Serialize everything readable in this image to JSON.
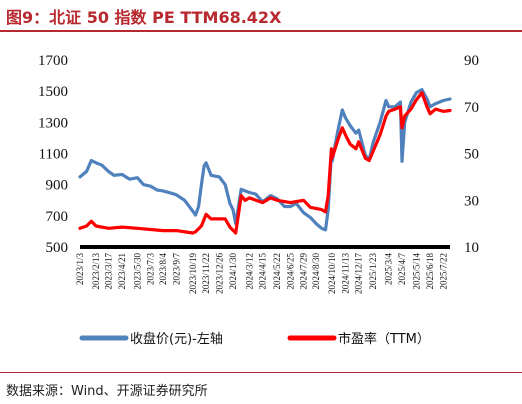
{
  "title": "图9：北证 50 指数 PE TTM68.42X",
  "source": "数据来源：Wind、开源证券研究所",
  "colors": {
    "accent": "#b8292f",
    "price": "#4f81bd",
    "pe": "#ff0000"
  },
  "chart_data": {
    "type": "line",
    "title": "图9：北证 50 指数 PE TTM68.42X",
    "y_left": {
      "min": 500,
      "max": 1700,
      "ticks": [
        500,
        700,
        900,
        1100,
        1300,
        1500,
        1700
      ]
    },
    "y_right": {
      "min": 10,
      "max": 90,
      "ticks": [
        10,
        30,
        50,
        70,
        90
      ]
    },
    "x_ticks": [
      "2023/1/3",
      "2023/2/13",
      "2023/3/17",
      "2023/4/21",
      "2023/5/30",
      "2023/7/3",
      "2023/8/4",
      "2023/9/7",
      "2023/10/19",
      "2023/11/22",
      "2023/12/26",
      "2024/1/30",
      "2024/3/12",
      "2024/4/15",
      "2024/5/22",
      "2024/6/25",
      "2024/7/29",
      "2024/8/30",
      "2024/10/10",
      "2024/11/13",
      "2024/12/17",
      "2025/1/23",
      "2025/3/4",
      "2025/4/7",
      "2025/5/14",
      "2025/6/18",
      "2025/7/22"
    ],
    "x_range": [
      "2023/1/3",
      "2025/8/8"
    ],
    "legend_position": "bottom",
    "grid": false,
    "series": [
      {
        "name": "收盘价(元)-左轴",
        "axis": "left",
        "color": "#4f81bd",
        "points": [
          [
            "2023/1/3",
            950
          ],
          [
            "2023/1/20",
            985
          ],
          [
            "2023/2/1",
            1055
          ],
          [
            "2023/2/13",
            1040
          ],
          [
            "2023/2/28",
            1025
          ],
          [
            "2023/3/17",
            985
          ],
          [
            "2023/3/31",
            960
          ],
          [
            "2023/4/21",
            965
          ],
          [
            "2023/5/10",
            935
          ],
          [
            "2023/5/30",
            945
          ],
          [
            "2023/6/15",
            900
          ],
          [
            "2023/7/3",
            890
          ],
          [
            "2023/7/20",
            865
          ],
          [
            "2023/8/4",
            860
          ],
          [
            "2023/8/25",
            845
          ],
          [
            "2023/9/7",
            835
          ],
          [
            "2023/9/28",
            800
          ],
          [
            "2023/10/19",
            730
          ],
          [
            "2023/10/26",
            705
          ],
          [
            "2023/11/3",
            760
          ],
          [
            "2023/11/10",
            900
          ],
          [
            "2023/11/17",
            1020
          ],
          [
            "2023/11/22",
            1040
          ],
          [
            "2023/12/5",
            960
          ],
          [
            "2023/12/26",
            950
          ],
          [
            "2024/1/10",
            900
          ],
          [
            "2024/1/22",
            780
          ],
          [
            "2024/1/30",
            740
          ],
          [
            "2024/2/6",
            650
          ],
          [
            "2024/2/20",
            870
          ],
          [
            "2024/3/1",
            860
          ],
          [
            "2024/3/12",
            850
          ],
          [
            "2024/3/28",
            840
          ],
          [
            "2024/4/15",
            790
          ],
          [
            "2024/5/5",
            830
          ],
          [
            "2024/5/22",
            810
          ],
          [
            "2024/6/10",
            760
          ],
          [
            "2024/6/25",
            760
          ],
          [
            "2024/7/10",
            780
          ],
          [
            "2024/7/29",
            720
          ],
          [
            "2024/8/15",
            690
          ],
          [
            "2024/8/30",
            650
          ],
          [
            "2024/9/13",
            620
          ],
          [
            "2024/9/23",
            610
          ],
          [
            "2024/9/30",
            740
          ],
          [
            "2024/10/8",
            1100
          ],
          [
            "2024/10/10",
            1050
          ],
          [
            "2024/10/25",
            1250
          ],
          [
            "2024/11/5",
            1380
          ],
          [
            "2024/11/13",
            1330
          ],
          [
            "2024/11/25",
            1280
          ],
          [
            "2024/12/10",
            1230
          ],
          [
            "2024/12/17",
            1250
          ],
          [
            "2025/1/3",
            1090
          ],
          [
            "2025/1/13",
            1060
          ],
          [
            "2025/1/23",
            1170
          ],
          [
            "2025/2/10",
            1300
          ],
          [
            "2025/2/25",
            1440
          ],
          [
            "2025/3/4",
            1400
          ],
          [
            "2025/3/20",
            1400
          ],
          [
            "2025/4/3",
            1430
          ],
          [
            "2025/4/7",
            1050
          ],
          [
            "2025/4/14",
            1300
          ],
          [
            "2025/4/30",
            1430
          ],
          [
            "2025/5/14",
            1490
          ],
          [
            "2025/5/28",
            1510
          ],
          [
            "2025/6/10",
            1450
          ],
          [
            "2025/6/18",
            1400
          ],
          [
            "2025/7/2",
            1420
          ],
          [
            "2025/7/22",
            1440
          ],
          [
            "2025/8/8",
            1450
          ]
        ]
      },
      {
        "name": "市盈率（TTM）",
        "axis": "right",
        "color": "#ff0000",
        "points": [
          [
            "2023/1/3",
            18
          ],
          [
            "2023/1/20",
            19
          ],
          [
            "2023/2/1",
            21
          ],
          [
            "2023/2/13",
            19
          ],
          [
            "2023/3/17",
            18
          ],
          [
            "2023/4/21",
            18.5
          ],
          [
            "2023/5/30",
            18
          ],
          [
            "2023/7/3",
            17.5
          ],
          [
            "2023/8/4",
            17
          ],
          [
            "2023/9/7",
            17
          ],
          [
            "2023/10/19",
            16
          ],
          [
            "2023/10/26",
            16.5
          ],
          [
            "2023/11/10",
            19
          ],
          [
            "2023/11/22",
            24
          ],
          [
            "2023/12/5",
            22
          ],
          [
            "2023/12/26",
            22
          ],
          [
            "2024/1/10",
            22
          ],
          [
            "2024/1/22",
            18.5
          ],
          [
            "2024/2/6",
            16
          ],
          [
            "2024/2/20",
            32
          ],
          [
            "2024/3/1",
            30
          ],
          [
            "2024/3/12",
            31
          ],
          [
            "2024/4/15",
            29
          ],
          [
            "2024/5/5",
            31
          ],
          [
            "2024/5/22",
            30
          ],
          [
            "2024/6/25",
            29
          ],
          [
            "2024/7/29",
            30
          ],
          [
            "2024/8/15",
            27
          ],
          [
            "2024/9/13",
            26
          ],
          [
            "2024/9/23",
            25
          ],
          [
            "2024/9/30",
            32
          ],
          [
            "2024/10/8",
            52
          ],
          [
            "2024/10/10",
            48
          ],
          [
            "2024/10/25",
            56
          ],
          [
            "2024/11/5",
            61
          ],
          [
            "2024/11/13",
            58
          ],
          [
            "2024/11/25",
            54
          ],
          [
            "2024/12/10",
            52
          ],
          [
            "2024/12/17",
            55
          ],
          [
            "2025/1/3",
            48
          ],
          [
            "2025/1/13",
            47
          ],
          [
            "2025/1/23",
            51
          ],
          [
            "2025/2/10",
            58
          ],
          [
            "2025/2/25",
            66
          ],
          [
            "2025/3/4",
            68
          ],
          [
            "2025/3/20",
            69
          ],
          [
            "2025/4/3",
            70
          ],
          [
            "2025/4/7",
            61
          ],
          [
            "2025/4/14",
            66
          ],
          [
            "2025/4/30",
            69
          ],
          [
            "2025/5/14",
            73
          ],
          [
            "2025/5/28",
            76
          ],
          [
            "2025/6/10",
            70
          ],
          [
            "2025/6/18",
            67
          ],
          [
            "2025/7/2",
            69
          ],
          [
            "2025/7/22",
            68
          ],
          [
            "2025/8/8",
            68.4
          ]
        ]
      }
    ]
  }
}
